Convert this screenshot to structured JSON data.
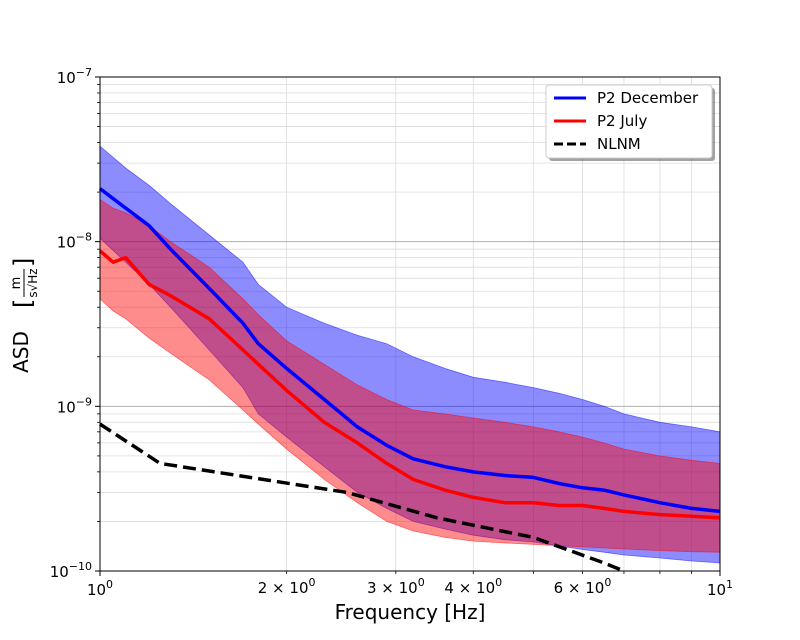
{
  "chart_data": {
    "type": "line",
    "title": "",
    "xlabel": "Frequency [Hz]",
    "ylabel": "ASD",
    "ylabel_unit": {
      "numerator": "m",
      "denominator": "s√Hz"
    },
    "x_scale": "log",
    "y_scale": "log",
    "xlim": [
      1,
      10
    ],
    "ylim": [
      1e-10,
      1e-07
    ],
    "grid": true,
    "legend_position": "top-right",
    "x_ticks": [
      {
        "value": 1,
        "base": "10",
        "exp": "0"
      },
      {
        "value": 10,
        "base": "10",
        "exp": "1"
      }
    ],
    "x_minor_labels": [
      {
        "value": 2,
        "base": "2 × 10",
        "exp": "0"
      },
      {
        "value": 3,
        "base": "3 × 10",
        "exp": "0"
      },
      {
        "value": 4,
        "base": "4 × 10",
        "exp": "0"
      },
      {
        "value": 6,
        "base": "6 × 10",
        "exp": "0"
      }
    ],
    "y_ticks": [
      {
        "value": 1e-10,
        "base": "10",
        "exp": "−10"
      },
      {
        "value": 1e-09,
        "base": "10",
        "exp": "−9"
      },
      {
        "value": 1e-08,
        "base": "10",
        "exp": "−8"
      },
      {
        "value": 1e-07,
        "base": "10",
        "exp": "−7"
      }
    ],
    "series": [
      {
        "name": "P2 December",
        "color": "#0000ff",
        "x": [
          1.0,
          1.1,
          1.2,
          1.3,
          1.5,
          1.7,
          1.8,
          2.0,
          2.3,
          2.6,
          2.9,
          3.2,
          3.6,
          4.0,
          4.5,
          5.0,
          5.5,
          6.0,
          6.5,
          7.0,
          8.0,
          9.0,
          10.0
        ],
        "values": [
          2.1e-08,
          1.6e-08,
          1.25e-08,
          9e-09,
          5.2e-09,
          3.2e-09,
          2.4e-09,
          1.7e-09,
          1.1e-09,
          7.5e-10,
          5.8e-10,
          4.8e-10,
          4.3e-10,
          4e-10,
          3.8e-10,
          3.7e-10,
          3.4e-10,
          3.2e-10,
          3.1e-10,
          2.9e-10,
          2.6e-10,
          2.4e-10,
          2.3e-10
        ],
        "upper": [
          3.8e-08,
          2.8e-08,
          2.2e-08,
          1.7e-08,
          1.1e-08,
          7.5e-09,
          5.5e-09,
          4e-09,
          3.2e-09,
          2.7e-09,
          2.4e-09,
          2e-09,
          1.7e-09,
          1.5e-09,
          1.4e-09,
          1.3e-09,
          1.2e-09,
          1.1e-09,
          1e-09,
          9e-10,
          8e-10,
          7.5e-10,
          7e-10
        ],
        "lower": [
          1.05e-08,
          7.5e-09,
          5.5e-09,
          4e-09,
          2.2e-09,
          1.3e-09,
          9e-10,
          6.5e-10,
          4.3e-10,
          3e-10,
          2.4e-10,
          2e-10,
          1.8e-10,
          1.65e-10,
          1.55e-10,
          1.5e-10,
          1.42e-10,
          1.35e-10,
          1.3e-10,
          1.25e-10,
          1.2e-10,
          1.15e-10,
          1.12e-10
        ]
      },
      {
        "name": "P2 July",
        "color": "#ff0000",
        "x": [
          1.0,
          1.05,
          1.1,
          1.2,
          1.3,
          1.5,
          1.7,
          1.8,
          2.0,
          2.3,
          2.6,
          2.9,
          3.2,
          3.6,
          4.0,
          4.5,
          5.0,
          5.5,
          6.0,
          6.5,
          7.0,
          8.0,
          9.0,
          10.0
        ],
        "values": [
          8.8e-09,
          7.5e-09,
          8e-09,
          5.5e-09,
          4.7e-09,
          3.4e-09,
          2.2e-09,
          1.8e-09,
          1.25e-09,
          8e-10,
          6e-10,
          4.5e-10,
          3.6e-10,
          3.1e-10,
          2.8e-10,
          2.6e-10,
          2.6e-10,
          2.5e-10,
          2.5e-10,
          2.4e-10,
          2.3e-10,
          2.2e-10,
          2.15e-10,
          2.1e-10
        ],
        "upper": [
          1.8e-08,
          1.6e-08,
          1.5e-08,
          1.25e-08,
          1e-08,
          7e-09,
          4.5e-09,
          3.6e-09,
          2.5e-09,
          1.8e-09,
          1.35e-09,
          1.1e-09,
          9.5e-10,
          9e-10,
          8.5e-10,
          8e-10,
          7.5e-10,
          7e-10,
          6.5e-10,
          6e-10,
          5.5e-10,
          5e-10,
          4.7e-10,
          4.5e-10
        ],
        "lower": [
          4.5e-09,
          3.8e-09,
          3.4e-09,
          2.6e-09,
          2.1e-09,
          1.45e-09,
          9.5e-10,
          7.8e-10,
          5.5e-10,
          3.6e-10,
          2.6e-10,
          2e-10,
          1.75e-10,
          1.6e-10,
          1.52e-10,
          1.48e-10,
          1.45e-10,
          1.42e-10,
          1.4e-10,
          1.38e-10,
          1.36e-10,
          1.33e-10,
          1.31e-10,
          1.3e-10
        ]
      },
      {
        "name": "NLNM",
        "color": "#000000",
        "dashed": true,
        "x": [
          1.0,
          1.25,
          2.5,
          3.5,
          5.0,
          6.5,
          7.0
        ],
        "values": [
          7.8e-10,
          4.5e-10,
          3e-10,
          2.1e-10,
          1.6e-10,
          1.12e-10,
          1e-10
        ]
      }
    ]
  }
}
